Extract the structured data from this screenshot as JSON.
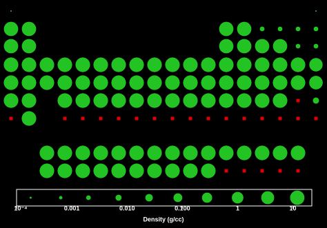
{
  "chart_data": {
    "type": "bubble-table",
    "x_label": "Density (g/cc)",
    "log_scale": true,
    "color": "#22c322",
    "unknown_color": "#e00000",
    "xlim": [
      0.0001,
      22
    ],
    "xticks": [
      {
        "value": 0.0001,
        "label": "10⁻⁴"
      },
      {
        "value": 0.001,
        "label": "0.001"
      },
      {
        "value": 0.01,
        "label": "0.010"
      },
      {
        "value": 0.1,
        "label": "0.100"
      },
      1,
      10
    ],
    "legend_values": [
      0.00018,
      0.00063,
      0.002,
      0.007,
      0.025,
      0.083,
      0.28,
      1,
      3.5,
      12
    ],
    "rows": [
      {
        "values": [
          0.0001,
          null,
          null,
          null,
          null,
          null,
          null,
          null,
          null,
          null,
          null,
          null,
          null,
          null,
          null,
          null,
          null,
          0.0001
        ],
        "unknown": []
      },
      {
        "values": [
          12,
          12,
          null,
          null,
          null,
          null,
          null,
          null,
          null,
          null,
          null,
          null,
          12,
          12,
          0.002,
          0.002,
          0.002,
          0.002
        ],
        "unknown": []
      },
      {
        "values": [
          12,
          12,
          null,
          null,
          null,
          null,
          null,
          null,
          null,
          null,
          null,
          null,
          12,
          12,
          12,
          12,
          0.002,
          0.002
        ],
        "unknown": []
      },
      {
        "values": [
          15,
          15,
          15,
          15,
          15,
          15,
          15,
          15,
          15,
          15,
          15,
          15,
          15,
          15,
          15,
          15,
          15,
          5
        ],
        "unknown": []
      },
      {
        "values": [
          15,
          15,
          15,
          15,
          15,
          15,
          15,
          15,
          15,
          15,
          15,
          15,
          15,
          15,
          15,
          15,
          15,
          6
        ],
        "unknown": []
      },
      {
        "values": [
          15,
          15,
          null,
          15,
          15,
          15,
          15,
          15,
          15,
          15,
          15,
          15,
          15,
          15,
          15,
          15,
          null,
          0.008
        ],
        "unknown": [
          16
        ]
      },
      {
        "values": [
          null,
          15,
          null,
          null,
          null,
          null,
          null,
          null,
          null,
          null,
          null,
          null,
          null,
          null,
          null,
          null,
          null,
          null
        ],
        "unknown": [
          0,
          3,
          4,
          5,
          6,
          7,
          8,
          9,
          10,
          11,
          12,
          13,
          14,
          15,
          16,
          17
        ]
      },
      {
        "values": [
          null,
          null,
          15,
          15,
          15,
          15,
          15,
          15,
          15,
          15,
          15,
          15,
          15,
          15,
          15,
          15,
          15,
          null
        ],
        "unknown": []
      },
      {
        "values": [
          null,
          null,
          15,
          15,
          15,
          15,
          15,
          15,
          15,
          15,
          15,
          15,
          null,
          null,
          null,
          null,
          null,
          null
        ],
        "unknown": [
          12,
          13,
          14,
          15,
          16
        ]
      }
    ]
  }
}
